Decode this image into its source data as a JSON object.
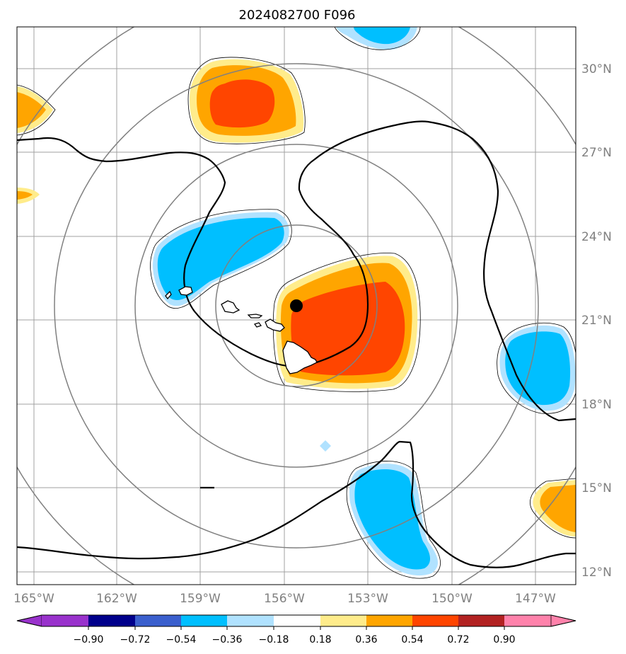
{
  "title": "2024082700 F096",
  "colors": {
    "neg_090": "#9932cc",
    "neg_072": "#00008b",
    "neg_054": "#3a5fcd",
    "neg_036": "#00bfff",
    "neg_018": "#b0e2ff",
    "zero": "#ffffff",
    "pos_018": "#ffec8b",
    "pos_036": "#ffa500",
    "pos_054": "#ff4500",
    "pos_072": "#b22222",
    "pos_090": "#ff82ab",
    "grid": "#a0a0a0",
    "range_ring": "#808080",
    "contour": "#000000",
    "tick_label": "#808080"
  },
  "center_marker": {
    "lon": -155.5,
    "lat": 21.5
  },
  "map": {
    "lon_labels": [
      "165°W",
      "162°W",
      "159°W",
      "156°W",
      "153°W",
      "150°W",
      "147°W"
    ],
    "lat_labels": [
      "30°N",
      "27°N",
      "24°N",
      "21°N",
      "18°N",
      "15°N",
      "12°N"
    ]
  },
  "colorbar": {
    "labels": [
      "−0.90",
      "−0.72",
      "−0.54",
      "−0.36",
      "−0.18",
      "0.18",
      "0.36",
      "0.54",
      "0.72",
      "0.90"
    ]
  }
}
